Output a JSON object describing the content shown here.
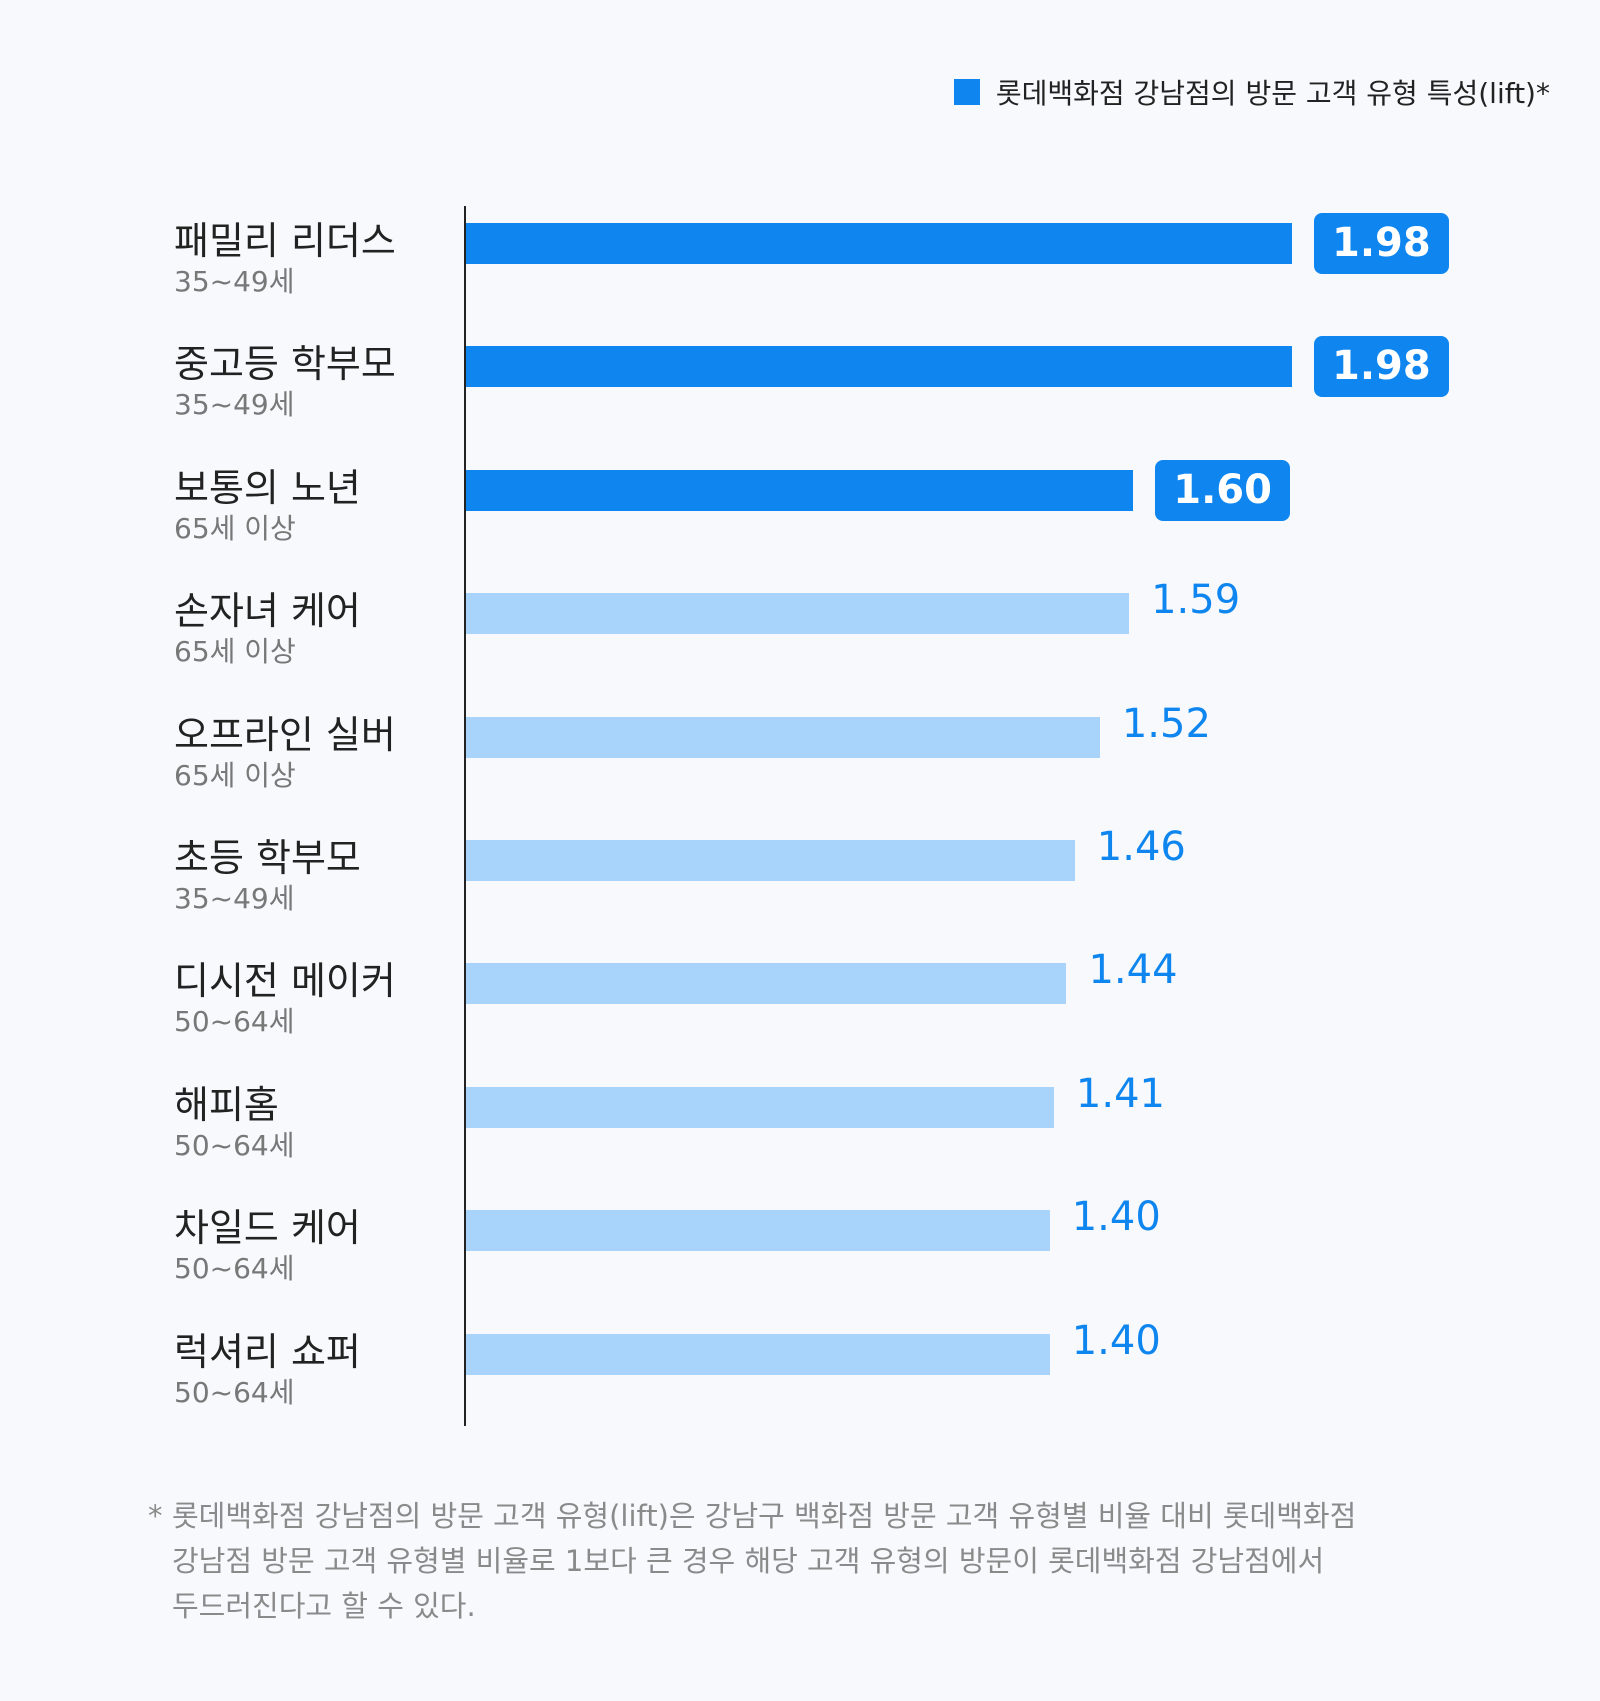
{
  "legend": {
    "label": "롯데백화점 강남점의 방문 고객 유형 특성(lift)*",
    "color": "#0f86ef"
  },
  "chart_data": {
    "type": "bar",
    "orientation": "horizontal",
    "title": "",
    "xlabel": "",
    "ylabel": "",
    "xlim": [
      0,
      2.2
    ],
    "categories": [
      "패밀리 리더스",
      "중고등 학부모",
      "보통의 노년",
      "손자녀 케어",
      "오프라인 실버",
      "초등 학부모",
      "디시전 메이커",
      "해피홈",
      "차일드 케어",
      "럭셔리 쇼퍼"
    ],
    "subtitles": [
      "35~49세",
      "35~49세",
      "65세 이상",
      "65세 이상",
      "65세 이상",
      "35~49세",
      "50~64세",
      "50~64세",
      "50~64세",
      "50~64세"
    ],
    "values": [
      1.98,
      1.98,
      1.6,
      1.59,
      1.52,
      1.46,
      1.44,
      1.41,
      1.4,
      1.4
    ],
    "value_labels": [
      "1.98",
      "1.98",
      "1.60",
      "1.59",
      "1.52",
      "1.46",
      "1.44",
      "1.41",
      "1.40",
      "1.40"
    ],
    "highlighted": [
      true,
      true,
      true,
      false,
      false,
      false,
      false,
      false,
      false,
      false
    ],
    "series": [
      {
        "name": "롯데백화점 강남점의 방문 고객 유형 특성(lift)*",
        "values": [
          1.98,
          1.98,
          1.6,
          1.59,
          1.52,
          1.46,
          1.44,
          1.41,
          1.4,
          1.4
        ]
      }
    ],
    "colors": {
      "highlight": "#0f86ef",
      "normal": "#a8d3fa",
      "axis": "#222222"
    },
    "legend_position": "top-right",
    "grid": false
  },
  "footnote": {
    "mark": "*",
    "text": "롯데백화점 강남점의 방문 고객 유형(lift)은 강남구 백화점 방문 고객 유형별 비율 대비 롯데백화점\n강남점 방문 고객 유형별 비율로 1보다 큰 경우 해당 고객 유형의 방문이 롯데백화점 강남점에서\n두드러진다고 할 수 있다."
  }
}
